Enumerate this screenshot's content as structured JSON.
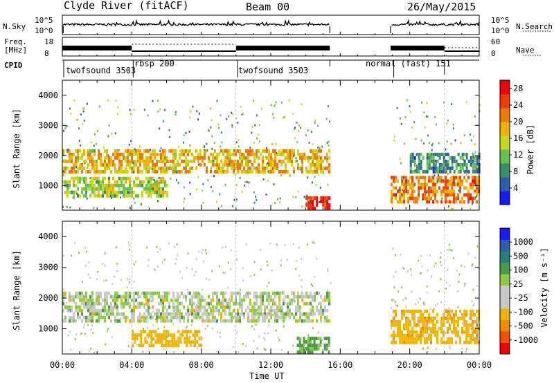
{
  "header": {
    "station": "Clyde River (fitACF)",
    "beam": "Beam 00",
    "date": "26/May/2015"
  },
  "nsky_panel": {
    "left_label": "N.Sky",
    "left_ticks": [
      "10^5",
      "10^0"
    ],
    "right_ticks": [
      "10^5",
      "10^0"
    ],
    "right_label": "N.Search"
  },
  "freq_panel": {
    "left_label_1": "Freq.",
    "left_label_2": "[MHz]",
    "left_ticks": [
      "18",
      "8"
    ],
    "right_ticks": [
      "60",
      "0"
    ],
    "right_label": "Nave"
  },
  "cpid": {
    "label": "CPID",
    "segments": [
      {
        "name": "twofsound 3503",
        "start_hour": 0
      },
      {
        "name": "rbsp 200",
        "start_hour": 4
      },
      {
        "name": "twofsound 3503",
        "start_hour": 10
      },
      {
        "name": "normal (fast) 151",
        "start_hour": 19
      }
    ]
  },
  "colors": {
    "power_scale": [
      "#1a1aff",
      "#2d5ea8",
      "#3a8c6a",
      "#66c24a",
      "#c8d820",
      "#f0b000",
      "#f07800",
      "#f03c00",
      "#f00000"
    ],
    "velocity_scale": [
      "#f00000",
      "#f05000",
      "#f08c00",
      "#f0b400",
      "#c8c8c8",
      "#c8c8c8",
      "#88cc44",
      "#4a9a4a",
      "#2a7e7e",
      "#2d5ea8",
      "#1a1aff"
    ]
  },
  "chart_data": [
    {
      "type": "heatmap",
      "parameter": "Power",
      "ylabel": "Slant Range [km]",
      "yticks": [
        1000,
        2000,
        3000,
        4000
      ],
      "ylim": [
        180,
        4500
      ],
      "xlim_hours": [
        0,
        24
      ],
      "colorbar": {
        "label": "Power [dB]",
        "ticks": [
          "4",
          "8",
          "12",
          "16",
          "20",
          "24",
          "28"
        ],
        "range": [
          0,
          30
        ]
      },
      "data_gap_hours": [
        15.4,
        18.9
      ],
      "regions": [
        {
          "t": [
            0,
            15.4
          ],
          "range_km": [
            1400,
            2100
          ],
          "value": 18
        },
        {
          "t": [
            0,
            6
          ],
          "range_km": [
            600,
            1200
          ],
          "value": 14
        },
        {
          "t": [
            14,
            15.4
          ],
          "range_km": [
            180,
            600
          ],
          "value": 28
        },
        {
          "t": [
            18.9,
            24
          ],
          "range_km": [
            400,
            1300
          ],
          "value": 22
        },
        {
          "t": [
            20,
            24
          ],
          "range_km": [
            1400,
            2000
          ],
          "value": 8
        }
      ]
    },
    {
      "type": "heatmap",
      "parameter": "Velocity",
      "ylabel": "Slant Range [km]",
      "xlabel": "Time UT",
      "yticks": [
        1000,
        2000,
        3000,
        4000
      ],
      "ylim": [
        180,
        4500
      ],
      "xlim_hours": [
        0,
        24
      ],
      "xticks": [
        "00:00",
        "04:00",
        "08:00",
        "12:00",
        "16:00",
        "20:00",
        "00:00"
      ],
      "colorbar": {
        "label": "Velocity [m s⁻¹]",
        "ticks": [
          "1000",
          "500",
          "100",
          "25",
          "-25",
          "-100",
          "-500",
          "-1000"
        ]
      },
      "data_gap_hours": [
        15.4,
        18.9
      ],
      "regions": [
        {
          "t": [
            0,
            15.4
          ],
          "range_km": [
            1200,
            2200
          ],
          "value": 0
        },
        {
          "t": [
            4,
            8
          ],
          "range_km": [
            400,
            900
          ],
          "value": -300
        },
        {
          "t": [
            13.5,
            15.4
          ],
          "range_km": [
            180,
            700
          ],
          "value": 150
        },
        {
          "t": [
            18.9,
            24
          ],
          "range_km": [
            500,
            1600
          ],
          "value": -400
        }
      ]
    }
  ]
}
